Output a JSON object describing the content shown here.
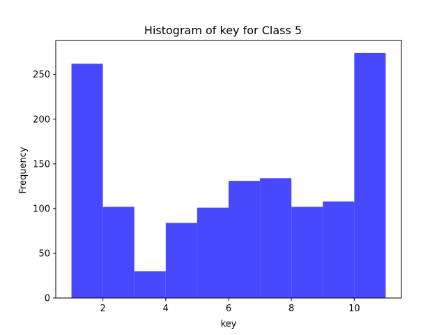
{
  "chart_data": {
    "type": "bar",
    "title": "Histogram of key for Class 5",
    "xlabel": "key",
    "ylabel": "Frequency",
    "bin_edges": [
      1,
      2,
      3,
      4,
      5,
      6,
      7,
      8,
      9,
      10,
      11
    ],
    "values": [
      262,
      102,
      30,
      84,
      101,
      131,
      134,
      102,
      108,
      274
    ],
    "xlim": [
      0.5,
      11.5
    ],
    "ylim": [
      0,
      288
    ],
    "x_ticks": [
      2,
      4,
      6,
      8,
      10
    ],
    "y_ticks": [
      0,
      50,
      100,
      150,
      200,
      250
    ],
    "bar_color": "#4848ff",
    "grid": false,
    "legend": "none"
  }
}
